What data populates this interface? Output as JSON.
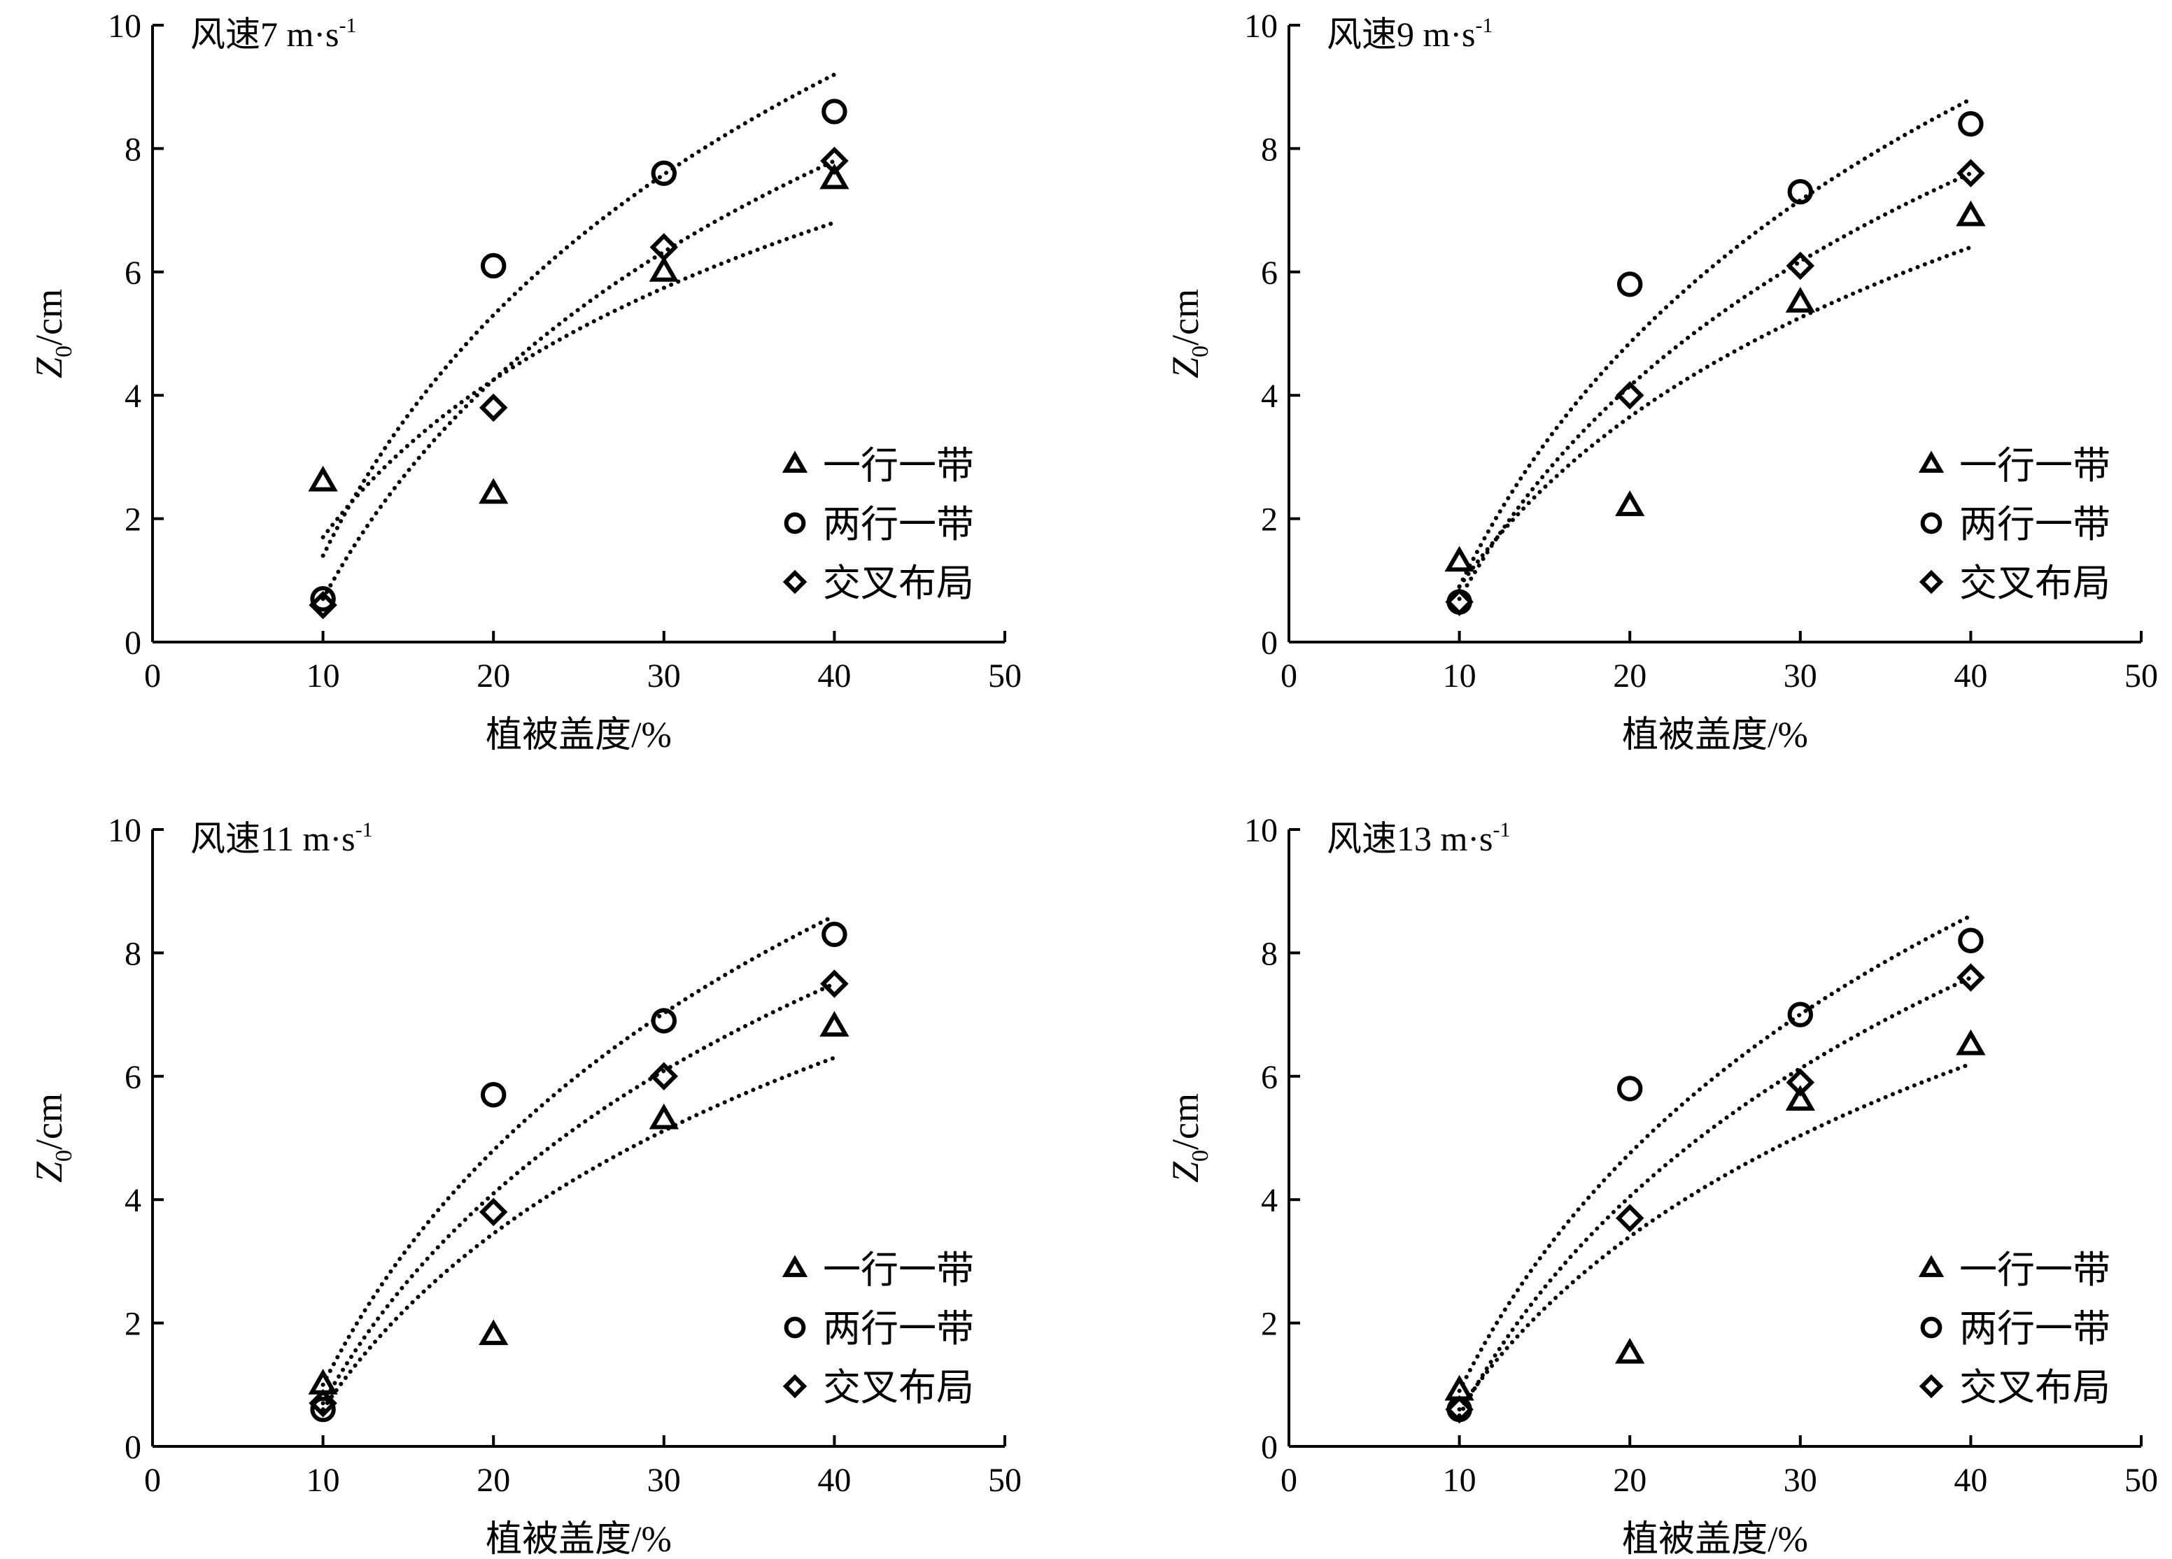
{
  "chart_data": [
    {
      "type": "scatter",
      "title": "风速7 m·s",
      "title_superscript": "-1",
      "xlabel": "植被盖度/%",
      "ylabel_main": "Z",
      "ylabel_sub": "0",
      "ylabel_unit": "/cm",
      "xlim": [
        0,
        50
      ],
      "ylim": [
        0,
        10
      ],
      "xticks": [
        0,
        10,
        20,
        30,
        40,
        50
      ],
      "yticks": [
        0,
        2,
        4,
        6,
        8,
        10
      ],
      "grid": false,
      "legend": "right",
      "trendline": "logarithmic, dotted",
      "series": [
        {
          "name": "一行一带",
          "marker": "triangle",
          "x": [
            10,
            20,
            30,
            40
          ],
          "y": [
            2.6,
            2.4,
            6.0,
            7.5
          ],
          "trend": [
            [
              10,
              1.7
            ],
            [
              40,
              6.8
            ]
          ]
        },
        {
          "name": "两行一带",
          "marker": "circle",
          "x": [
            10,
            20,
            30,
            40
          ],
          "y": [
            0.7,
            6.1,
            7.6,
            8.6
          ],
          "trend": [
            [
              10,
              1.4
            ],
            [
              40,
              9.2
            ]
          ]
        },
        {
          "name": "交叉布局",
          "marker": "diamond",
          "x": [
            10,
            20,
            30,
            40
          ],
          "y": [
            0.6,
            3.8,
            6.4,
            7.8
          ],
          "trend": [
            [
              10,
              0.7
            ],
            [
              40,
              7.8
            ]
          ]
        }
      ]
    },
    {
      "type": "scatter",
      "title": "风速9 m·s",
      "title_superscript": "-1",
      "xlabel": "植被盖度/%",
      "ylabel_main": "Z",
      "ylabel_sub": "0",
      "ylabel_unit": "/cm",
      "xlim": [
        0,
        50
      ],
      "ylim": [
        0,
        10
      ],
      "xticks": [
        0,
        10,
        20,
        30,
        40,
        50
      ],
      "yticks": [
        0,
        2,
        4,
        6,
        8,
        10
      ],
      "grid": false,
      "legend": "right",
      "trendline": "logarithmic, dotted",
      "series": [
        {
          "name": "一行一带",
          "marker": "triangle",
          "x": [
            10,
            20,
            30,
            40
          ],
          "y": [
            1.3,
            2.2,
            5.5,
            6.9
          ],
          "trend": [
            [
              10,
              0.9
            ],
            [
              40,
              6.4
            ]
          ]
        },
        {
          "name": "两行一带",
          "marker": "circle",
          "x": [
            10,
            20,
            30,
            40
          ],
          "y": [
            0.65,
            5.8,
            7.3,
            8.4
          ],
          "trend": [
            [
              10,
              0.9
            ],
            [
              40,
              8.8
            ]
          ]
        },
        {
          "name": "交叉布局",
          "marker": "diamond",
          "x": [
            10,
            20,
            30,
            40
          ],
          "y": [
            0.65,
            4.0,
            6.1,
            7.6
          ],
          "trend": [
            [
              10,
              0.7
            ],
            [
              40,
              7.6
            ]
          ]
        }
      ]
    },
    {
      "type": "scatter",
      "title": "风速11 m·s",
      "title_superscript": "-1",
      "xlabel": "植被盖度/%",
      "ylabel_main": "Z",
      "ylabel_sub": "0",
      "ylabel_unit": "/cm",
      "xlim": [
        0,
        50
      ],
      "ylim": [
        0,
        10
      ],
      "xticks": [
        0,
        10,
        20,
        30,
        40,
        50
      ],
      "yticks": [
        0,
        2,
        4,
        6,
        8,
        10
      ],
      "grid": false,
      "legend": "right",
      "trendline": "logarithmic, dotted",
      "series": [
        {
          "name": "一行一带",
          "marker": "triangle",
          "x": [
            10,
            20,
            30,
            40
          ],
          "y": [
            1.0,
            1.8,
            5.3,
            6.8
          ],
          "trend": [
            [
              10,
              0.6
            ],
            [
              40,
              6.3
            ]
          ]
        },
        {
          "name": "两行一带",
          "marker": "circle",
          "x": [
            10,
            20,
            30,
            40
          ],
          "y": [
            0.6,
            5.7,
            6.9,
            8.3
          ],
          "trend": [
            [
              10,
              1.0
            ],
            [
              40,
              8.6
            ]
          ]
        },
        {
          "name": "交叉布局",
          "marker": "diamond",
          "x": [
            10,
            20,
            30,
            40
          ],
          "y": [
            0.7,
            3.8,
            6.0,
            7.5
          ],
          "trend": [
            [
              10,
              0.7
            ],
            [
              40,
              7.5
            ]
          ]
        }
      ]
    },
    {
      "type": "scatter",
      "title": "风速13 m·s",
      "title_superscript": "-1",
      "xlabel": "植被盖度/%",
      "ylabel_main": "Z",
      "ylabel_sub": "0",
      "ylabel_unit": "/cm",
      "xlim": [
        0,
        50
      ],
      "ylim": [
        0,
        10
      ],
      "xticks": [
        0,
        10,
        20,
        30,
        40,
        50
      ],
      "yticks": [
        0,
        2,
        4,
        6,
        8,
        10
      ],
      "grid": false,
      "legend": "right",
      "trendline": "logarithmic, dotted",
      "series": [
        {
          "name": "一行一带",
          "marker": "triangle",
          "x": [
            10,
            20,
            30,
            40
          ],
          "y": [
            0.9,
            1.5,
            5.6,
            6.5
          ],
          "trend": [
            [
              10,
              0.6
            ],
            [
              40,
              6.2
            ]
          ]
        },
        {
          "name": "两行一带",
          "marker": "circle",
          "x": [
            10,
            20,
            30,
            40
          ],
          "y": [
            0.6,
            5.8,
            7.0,
            8.2
          ],
          "trend": [
            [
              10,
              0.9
            ],
            [
              40,
              8.6
            ]
          ]
        },
        {
          "name": "交叉布局",
          "marker": "diamond",
          "x": [
            10,
            20,
            30,
            40
          ],
          "y": [
            0.6,
            3.7,
            5.9,
            7.6
          ],
          "trend": [
            [
              10,
              0.5
            ],
            [
              40,
              7.6
            ]
          ]
        }
      ]
    }
  ]
}
